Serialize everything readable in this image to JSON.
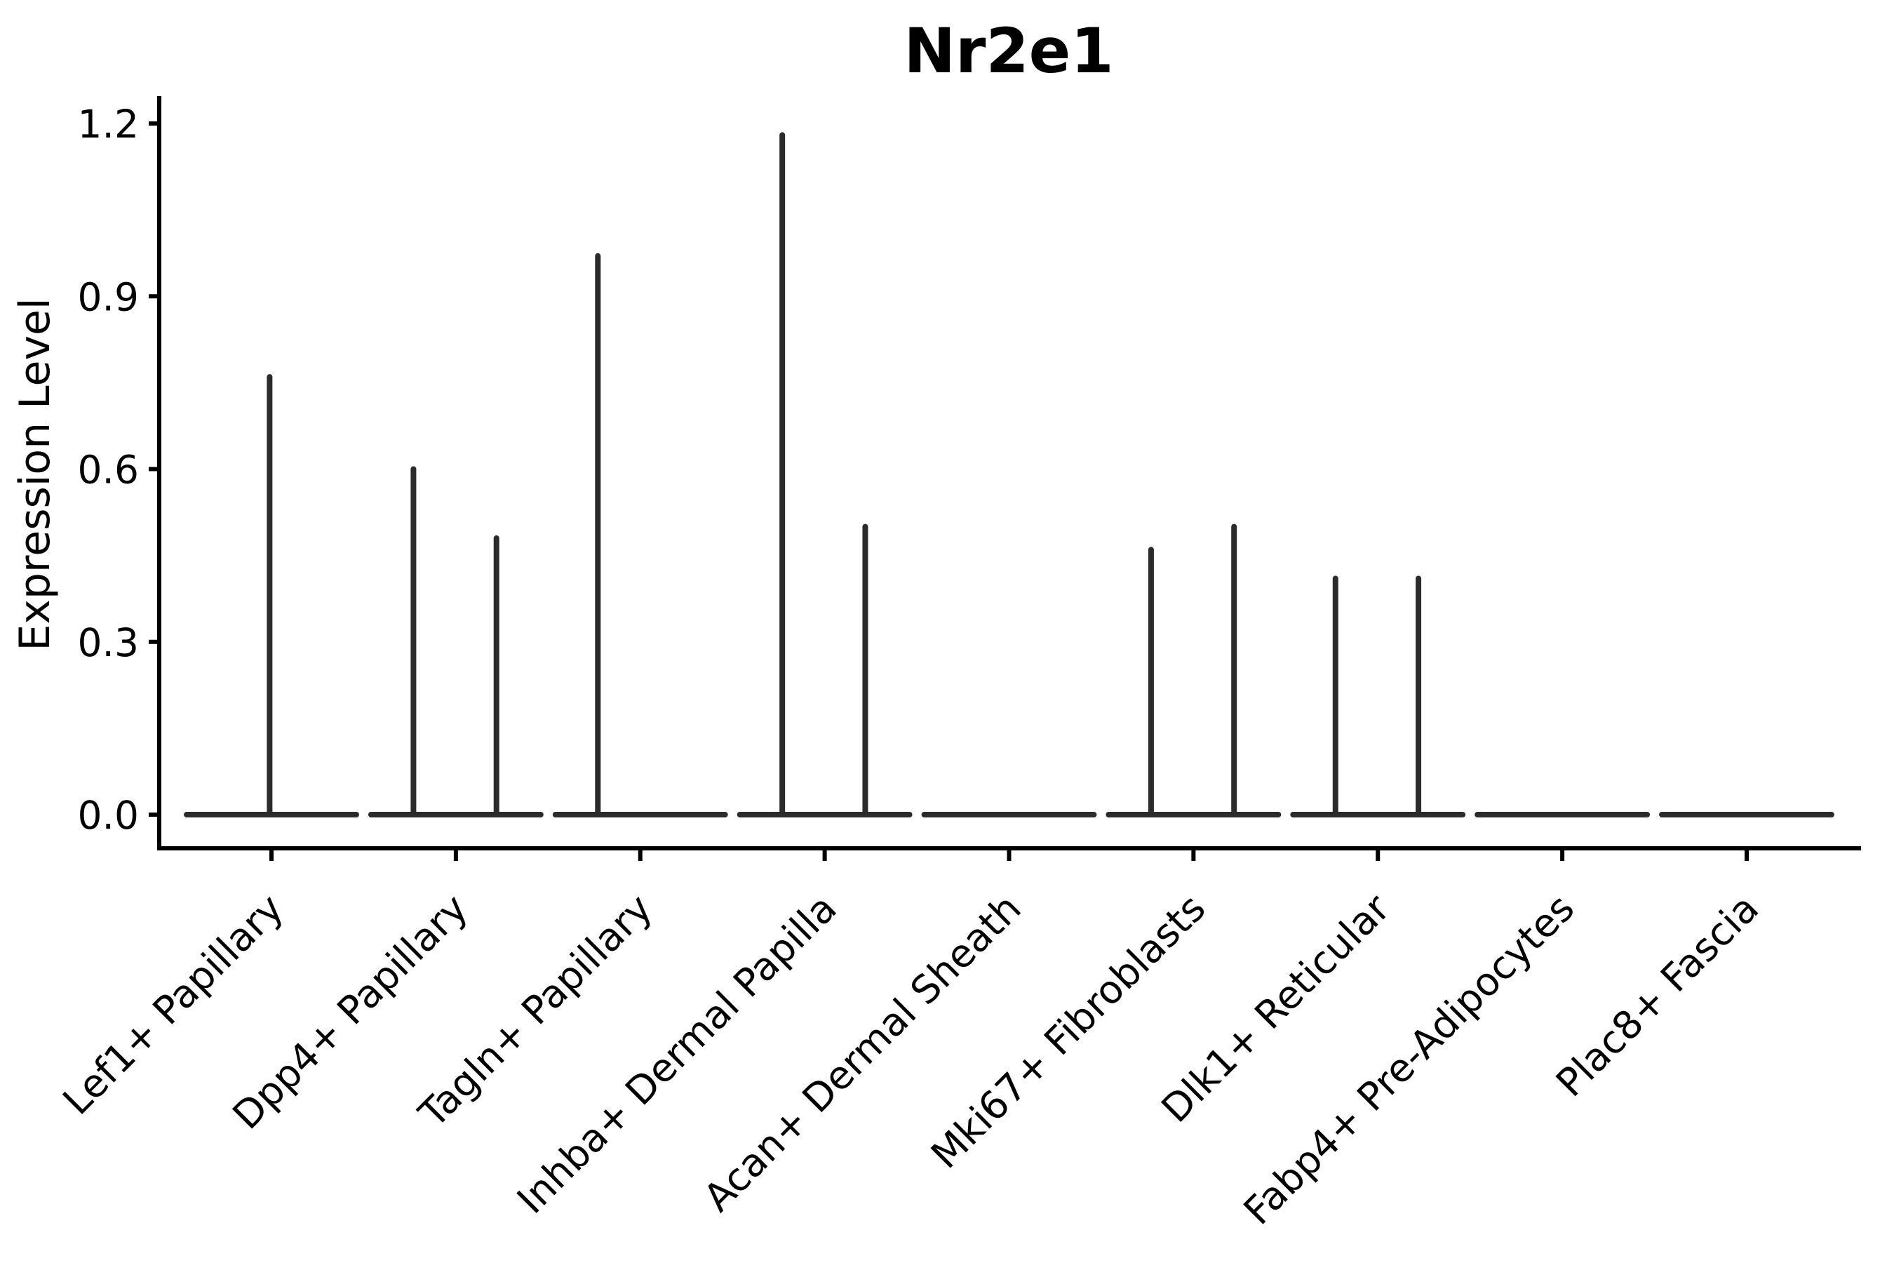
{
  "chart_data": {
    "type": "violin",
    "title": "Nr2e1",
    "ylabel": "Expression Level",
    "xlabel": "",
    "legend": "none",
    "grid": "off",
    "ylim": [
      -0.07,
      1.23
    ],
    "ytick_values": [
      0.0,
      0.3,
      0.6,
      0.9,
      1.2
    ],
    "ytick_labels": [
      "0.0",
      "0.3",
      "0.6",
      "0.9",
      "1.2"
    ],
    "violin_color": "#2b2b2b",
    "axis_color": "#000000",
    "base_halfwidth_frac": 0.46,
    "baseline_value": 0.0,
    "categories": [
      {
        "label": "Lef1+ Papillary",
        "spikes": [
          {
            "dx": -0.01,
            "max": 0.76
          }
        ]
      },
      {
        "label": "Dpp4+ Papillary",
        "spikes": [
          {
            "dx": -0.23,
            "max": 0.6
          },
          {
            "dx": 0.22,
            "max": 0.48
          }
        ]
      },
      {
        "label": "Tagln+ Papillary",
        "spikes": [
          {
            "dx": -0.23,
            "max": 0.97
          }
        ]
      },
      {
        "label": "Inhba+ Dermal Papilla",
        "spikes": [
          {
            "dx": -0.23,
            "max": 1.18
          },
          {
            "dx": 0.22,
            "max": 0.5
          }
        ]
      },
      {
        "label": "Acan+ Dermal Sheath",
        "spikes": []
      },
      {
        "label": "Mki67+ Fibroblasts",
        "spikes": [
          {
            "dx": -0.23,
            "max": 0.46
          },
          {
            "dx": 0.22,
            "max": 0.5
          }
        ]
      },
      {
        "label": "Dlk1+ Reticular",
        "spikes": [
          {
            "dx": -0.23,
            "max": 0.41
          },
          {
            "dx": 0.22,
            "max": 0.41
          }
        ]
      },
      {
        "label": "Fabp4+ Pre-Adipocytes",
        "spikes": []
      },
      {
        "label": "Plac8+ Fascia",
        "spikes": []
      }
    ]
  }
}
